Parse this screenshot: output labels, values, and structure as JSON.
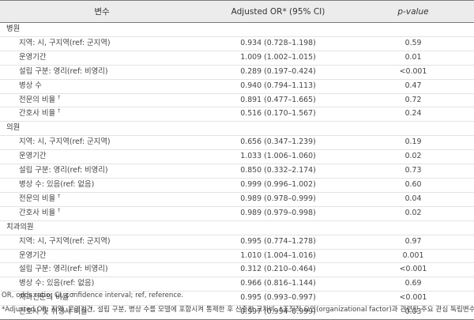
{
  "headers": {
    "variable": "변수",
    "or": "Adjusted OR* (95% CI)",
    "pvalue": "p-value"
  },
  "groups": [
    {
      "name": "병원",
      "rows": [
        {
          "label": "지역: 시, 구지역(ref: 군지역)",
          "dagger": "",
          "or": "0.934 (0.728–1.198)",
          "p": "0.59"
        },
        {
          "label": "운영기간",
          "dagger": "",
          "or": "1.009 (1.002–1.015)",
          "p": "0.01"
        },
        {
          "label": "설립 구분: 영리(ref: 비영리)",
          "dagger": "",
          "or": "0.289 (0.197–0.424)",
          "p": "<0.001"
        },
        {
          "label": "병상 수",
          "dagger": "",
          "or": "0.940 (0.794–1.113)",
          "p": "0.47"
        },
        {
          "label": "전문의 비율",
          "dagger": "†",
          "or": "0.891 (0.477–1.665)",
          "p": "0.72"
        },
        {
          "label": "간호사 비율",
          "dagger": "†",
          "or": "0.516 (0.170–1.567)",
          "p": "0.24"
        }
      ]
    },
    {
      "name": "의원",
      "rows": [
        {
          "label": "지역: 시, 구지역(ref: 군지역)",
          "dagger": "",
          "or": "0.656 (0.347–1.239)",
          "p": "0.19"
        },
        {
          "label": "운영기간",
          "dagger": "",
          "or": "1.033 (1.006–1.060)",
          "p": "0.02"
        },
        {
          "label": "설립 구분: 영리(ref: 비영리)",
          "dagger": "",
          "or": "0.850 (0.332–2.174)",
          "p": "0.73"
        },
        {
          "label": "병상 수: 있음(ref: 없음)",
          "dagger": "",
          "or": "0.999 (0.996–1.002)",
          "p": "0.60"
        },
        {
          "label": "전문의 비율",
          "dagger": "†",
          "or": "0.989 (0.978–0.999)",
          "p": "0.04"
        },
        {
          "label": "간호사 비율",
          "dagger": "†",
          "or": "0.989 (0.979–0.998)",
          "p": "0.02"
        }
      ]
    },
    {
      "name": "치과의원",
      "rows": [
        {
          "label": "지역: 시, 구지역(ref: 군지역)",
          "dagger": "",
          "or": "0.995 (0.774–1.278)",
          "p": "0.97"
        },
        {
          "label": "운영기간",
          "dagger": "",
          "or": "1.010 (1.004–1.016)",
          "p": "0.001"
        },
        {
          "label": "설립 구분: 영리(ref: 비영리)",
          "dagger": "",
          "or": "0.312 (0.210–0.464)",
          "p": "<0.001"
        },
        {
          "label": "병상 수: 있음(ref: 없음)",
          "dagger": "",
          "or": "0.966 (0.816–1.144)",
          "p": "0.69"
        },
        {
          "label": "치과전문의 비율",
          "dagger": "†",
          "or": "0.995 (0.993–0.997)",
          "p": "<0.001"
        },
        {
          "label": "간호사 및 위생사 비율",
          "dagger": "†",
          "or": "0.997 (0.994–0.999)",
          "p": "0.03"
        }
      ]
    }
  ],
  "footnotes": {
    "abbrev": "OR, odds ratio; CI, confidence interval; ref, reference.",
    "note": "*Adjusted OR: 지역, 운영기간, 설립 구분, 병상 수를 모델에 포함시켜 통제한 후 산출한 교차비. †조직적 요인(organizational factor)과 관련된 주요 관심 독립변수."
  }
}
